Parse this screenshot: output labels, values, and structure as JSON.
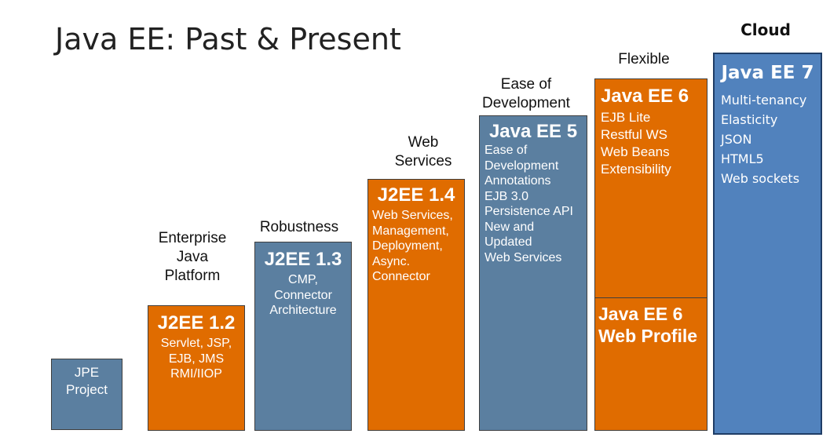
{
  "title": "Java EE: Past & Present",
  "captions": {
    "j2ee12": "Enterprise\nJava\nPlatform",
    "j2ee13": "Robustness",
    "j2ee14": "Web\nServices",
    "javaee5": "Ease of\nDevelopment",
    "javaee6": "Flexible",
    "javaee7": "Cloud"
  },
  "releases": {
    "jpe": {
      "text": "JPE\nProject"
    },
    "j2ee12": {
      "name": "J2EE 1.2",
      "features": "Servlet, JSP,\nEJB, JMS\nRMI/IIOP"
    },
    "j2ee13": {
      "name": "J2EE 1.3",
      "features": "CMP,\nConnector\nArchitecture"
    },
    "j2ee14": {
      "name": "J2EE 1.4",
      "features": "Web Services,\nManagement,\nDeployment,\n Async.\nConnector"
    },
    "javaee5": {
      "name": "Java EE 5",
      "features": "Ease of\nDevelopment\nAnnotations\nEJB 3.0\nPersistence API\nNew and\nUpdated\n Web Services"
    },
    "javaee6": {
      "name": "Java EE 6",
      "features": "EJB Lite\nRestful WS\nWeb Beans\nExtensibility"
    },
    "javaee6wp": {
      "name": "Java EE 6\nWeb Profile"
    },
    "javaee7": {
      "name": "Java EE 7",
      "features": "Multi-tenancy\nElasticity\nJSON\nHTML5\nWeb sockets"
    }
  },
  "colors": {
    "steel_blue": "#5b7fa0",
    "orange": "#e06c00",
    "bright_blue": "#5182bd"
  }
}
